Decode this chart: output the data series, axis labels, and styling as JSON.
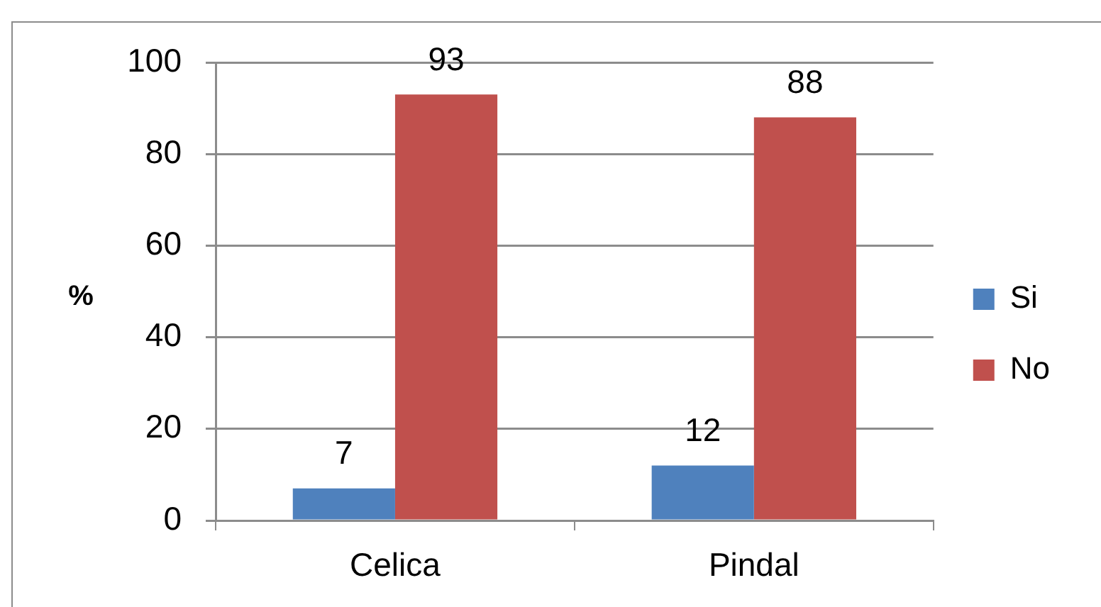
{
  "chart_data": {
    "type": "bar",
    "ylabel": "%",
    "categories": [
      "Celica",
      "Pindal"
    ],
    "series": [
      {
        "name": "Si",
        "color": "#4f81bd",
        "values": [
          7,
          12
        ]
      },
      {
        "name": "No",
        "color": "#c0504d",
        "values": [
          93,
          88
        ]
      }
    ],
    "ylim": [
      0,
      100
    ],
    "yticks": [
      0,
      20,
      40,
      60,
      80,
      100
    ],
    "grid": "y",
    "legend": "right",
    "data_labels": true
  }
}
